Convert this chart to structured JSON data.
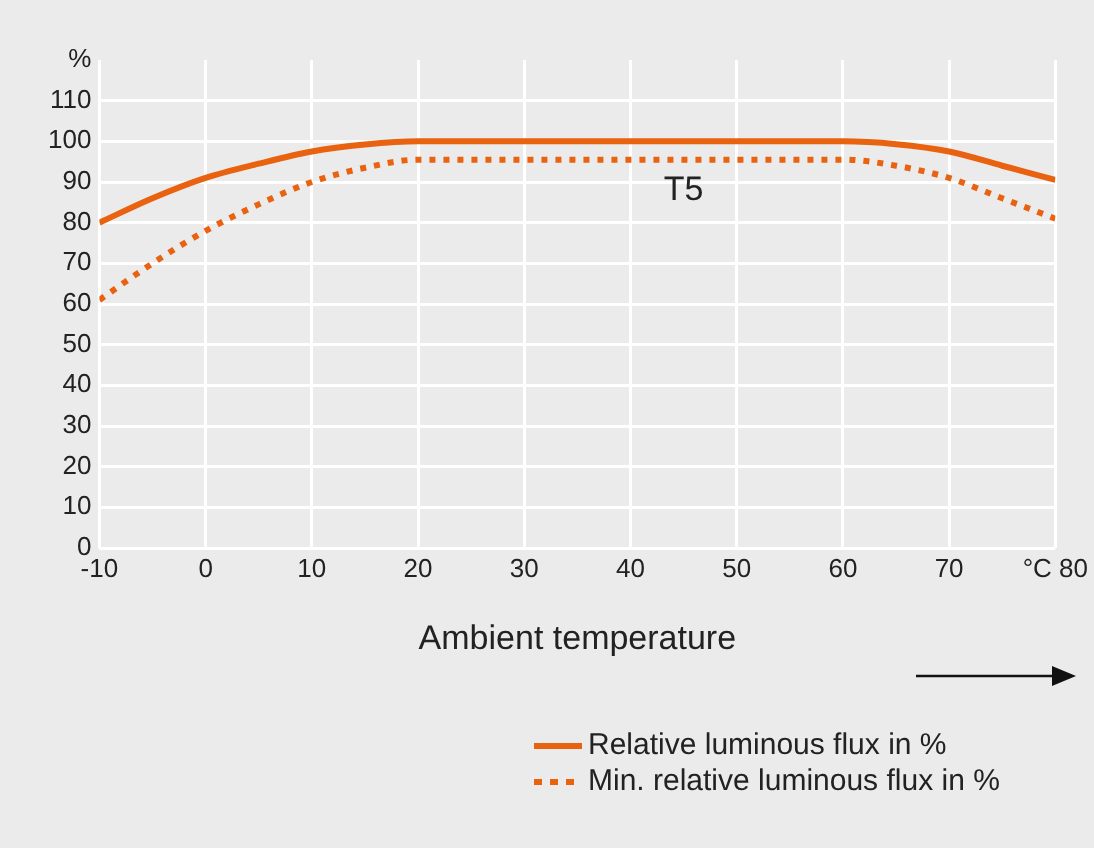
{
  "chart_data": {
    "type": "line",
    "xlabel": "Ambient temperature",
    "annotations": [
      "T5"
    ],
    "x": [
      -10,
      -5,
      0,
      5,
      10,
      15,
      20,
      30,
      40,
      50,
      60,
      65,
      70,
      75,
      80
    ],
    "series": [
      {
        "name": "Relative luminous flux in %",
        "color": "#e8620f",
        "line_style": "solid",
        "values": [
          80,
          86,
          91,
          94.5,
          97.5,
          99.2,
          100,
          100,
          100,
          100,
          100,
          99.3,
          97.5,
          94,
          90.5
        ]
      },
      {
        "name": "Min. relative luminous flux in %",
        "color": "#e8620f",
        "line_style": "dotted",
        "values": [
          61,
          70,
          78,
          84.5,
          90,
          93.5,
          95.5,
          95.5,
          95.5,
          95.5,
          95.5,
          94,
          91,
          86,
          81
        ]
      }
    ],
    "xlim": [
      -10,
      80
    ],
    "xticks": [
      -10,
      0,
      10,
      20,
      30,
      40,
      50,
      60,
      70,
      {
        "value": 80,
        "label": "°C 80"
      }
    ],
    "ylim": [
      0,
      120
    ],
    "yticks": [
      0,
      10,
      20,
      30,
      40,
      50,
      60,
      70,
      80,
      90,
      100,
      110,
      {
        "value": 120,
        "label": "%"
      }
    ],
    "grid": true,
    "legend": "bottom",
    "marker": "none"
  }
}
